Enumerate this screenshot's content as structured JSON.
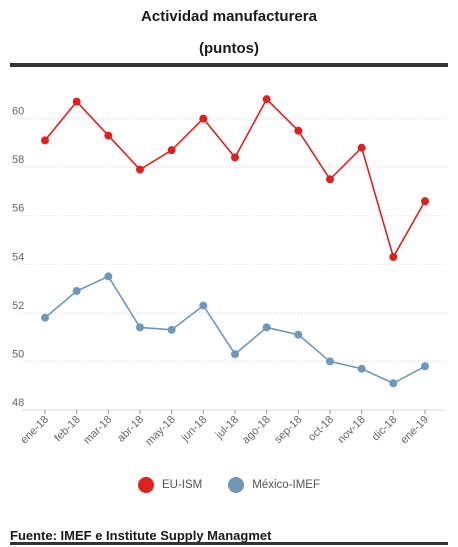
{
  "header": {
    "title": "Actividad manufacturera",
    "subtitle": "(puntos)"
  },
  "footer": {
    "source": "Fuente: IMEF e Institute Supply Managmet"
  },
  "legend": {
    "items": [
      {
        "label": "EU-ISM",
        "color": "#e01f1f"
      },
      {
        "label": "México-IMEF",
        "color": "#6f98b8"
      }
    ]
  },
  "chart_data": {
    "type": "line",
    "categories": [
      "ene-18",
      "feb-18",
      "mar-18",
      "abr-18",
      "may-18",
      "jun-18",
      "jul-18",
      "ago-18",
      "sep-18",
      "oct-18",
      "nov-18",
      "dic-18",
      "ene-19"
    ],
    "series": [
      {
        "name": "EU-ISM",
        "color": "#e01f1f",
        "values": [
          59.1,
          60.7,
          59.3,
          57.9,
          58.7,
          60.0,
          58.4,
          60.8,
          59.5,
          57.5,
          58.8,
          54.3,
          56.6
        ]
      },
      {
        "name": "México-IMEF",
        "color": "#6f98b8",
        "values": [
          51.8,
          52.9,
          53.5,
          51.4,
          51.3,
          52.3,
          50.3,
          51.4,
          51.1,
          50.0,
          49.7,
          49.1,
          49.8
        ]
      }
    ],
    "yticks": [
      48,
      50,
      52,
      54,
      56,
      58,
      60
    ],
    "ylim": [
      48,
      62
    ],
    "grid": true,
    "legend_position": "bottom"
  }
}
